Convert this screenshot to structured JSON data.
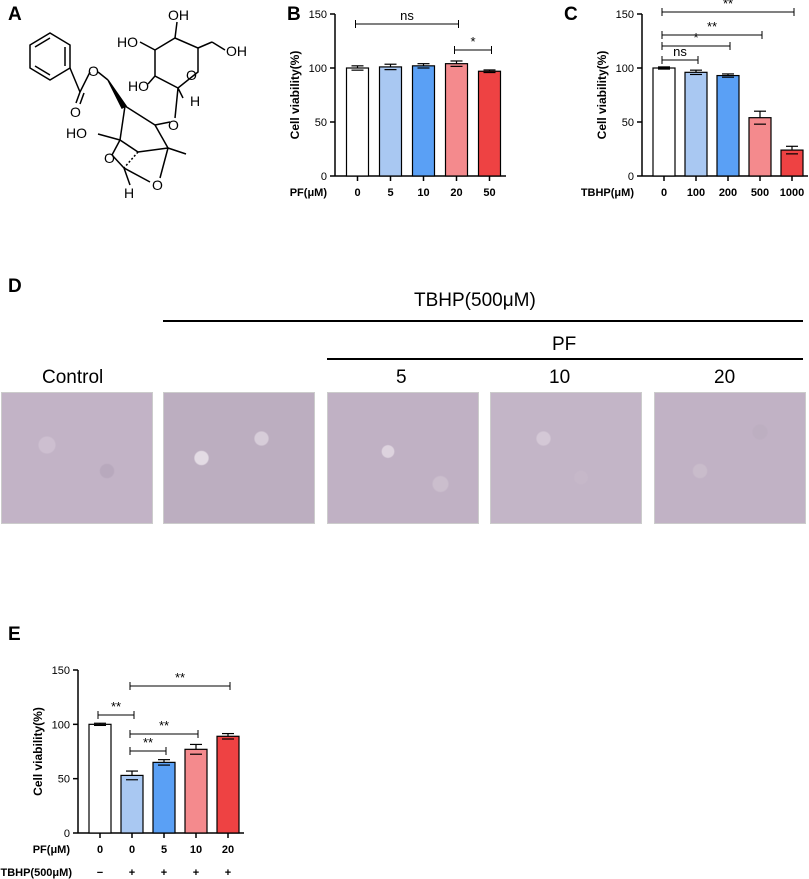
{
  "panels": {
    "a": "A",
    "b": "B",
    "c": "C",
    "d": "D",
    "e": "E"
  },
  "molecule": {
    "labels": {
      "oh1": "OH",
      "oh2": "HO",
      "oh3": "OH",
      "oh4": "HO",
      "o_ring": "O",
      "h1": "H",
      "o_glyco": "O",
      "ho_core": "HO",
      "o_ester": "O",
      "o_carbonyl": "O",
      "o_core1": "O",
      "o_core2": "O",
      "h2": "H"
    }
  },
  "panel_d": {
    "header": "TBHP(500μM)",
    "sub_header": "PF",
    "control_label": "Control",
    "dose_labels": [
      "5",
      "10",
      "20"
    ]
  },
  "chart_data": [
    {
      "id": "B",
      "type": "bar",
      "ylabel": "Cell viability(%)",
      "ylim": [
        0,
        150
      ],
      "yticks": [
        0,
        50,
        100,
        150
      ],
      "xlabel": "PF(μM)",
      "categories": [
        "0",
        "5",
        "10",
        "20",
        "50"
      ],
      "values": [
        100,
        101,
        102,
        104,
        97
      ],
      "errors": [
        2,
        2.5,
        2,
        2.5,
        1.2
      ],
      "colors": [
        "#ffffff",
        "#a9c8f2",
        "#5aa0f5",
        "#f48a8d",
        "#ee4243"
      ],
      "significance": [
        {
          "from": 0,
          "to": 3,
          "label": "ns"
        },
        {
          "from": 3,
          "to": 4,
          "label": "*"
        }
      ]
    },
    {
      "id": "C",
      "type": "bar",
      "ylabel": "Cell viability(%)",
      "ylim": [
        0,
        150
      ],
      "yticks": [
        0,
        50,
        100,
        150
      ],
      "xlabel": "TBHP(μM)",
      "categories": [
        "0",
        "100",
        "200",
        "500",
        "1000"
      ],
      "values": [
        100,
        96,
        93,
        54,
        24
      ],
      "errors": [
        1,
        2,
        1.5,
        6,
        3.5
      ],
      "colors": [
        "#ffffff",
        "#a9c8f2",
        "#5aa0f5",
        "#f48a8d",
        "#ee4243"
      ],
      "significance": [
        {
          "from": 0,
          "to": 4,
          "label": "**"
        },
        {
          "from": 0,
          "to": 3,
          "label": "**"
        },
        {
          "from": 0,
          "to": 2,
          "label": "*"
        },
        {
          "from": 0,
          "to": 1,
          "label": "ns"
        }
      ]
    },
    {
      "id": "E",
      "type": "bar",
      "ylabel": "Cell viability(%)",
      "ylim": [
        0,
        150
      ],
      "yticks": [
        0,
        50,
        100,
        150
      ],
      "row_labels": [
        "PF(μM)",
        "TBHP(500μM)"
      ],
      "categories": [
        "0",
        "0",
        "5",
        "10",
        "20"
      ],
      "tbhp": [
        "−",
        "+",
        "+",
        "+",
        "+"
      ],
      "values": [
        100,
        53,
        65,
        77,
        89
      ],
      "errors": [
        1,
        4,
        2.5,
        4.5,
        2.5
      ],
      "colors": [
        "#ffffff",
        "#a9c8f2",
        "#5aa0f5",
        "#f48a8d",
        "#ee4243"
      ],
      "significance": [
        {
          "from": 1,
          "to": 4,
          "label": "**"
        },
        {
          "from": 0,
          "to": 1,
          "label": "**"
        },
        {
          "from": 1,
          "to": 3,
          "label": "**"
        },
        {
          "from": 1,
          "to": 2,
          "label": "**"
        }
      ]
    }
  ]
}
